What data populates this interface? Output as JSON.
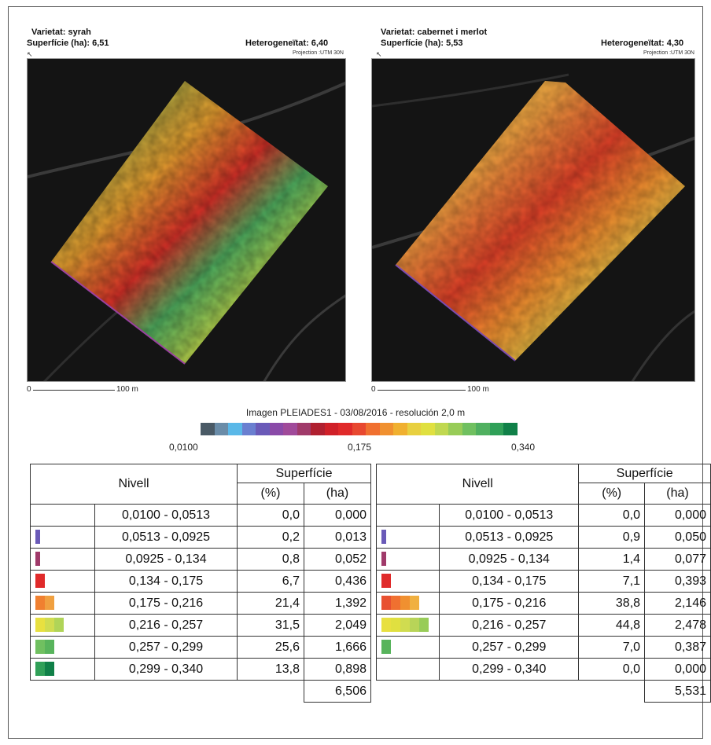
{
  "left_panel": {
    "variety": "Varietat: syrah",
    "area": "Superfície (ha): 6,51",
    "heterogeneity": "Heterogeneïtat: 6,40",
    "projection": "Projection :UTM 30N",
    "scale_zero": "0",
    "scale_length": "100 m"
  },
  "right_panel": {
    "variety": "Varietat: cabernet i merlot",
    "area": "Superfície (ha): 5,53",
    "heterogeneity": "Heterogeneïtat: 4,30",
    "projection": "Projection :UTM 30N",
    "scale_zero": "0",
    "scale_length": "100 m"
  },
  "caption": "Imagen PLEIADES1 - 03/08/2016 - resolución 2,0 m",
  "colorbar": {
    "min_label": "0,0100",
    "mid_label": "0,175",
    "max_label": "0,340",
    "colors": [
      "#4a5a66",
      "#6a8ca8",
      "#5ab8e8",
      "#6a7fd0",
      "#6a5ab8",
      "#8a4aa8",
      "#a04a9a",
      "#a03a6a",
      "#b02030",
      "#d02028",
      "#e02a2a",
      "#e84830",
      "#f07030",
      "#f09030",
      "#f0b030",
      "#e8d040",
      "#e0e040",
      "#c0d850",
      "#98cc58",
      "#70c060",
      "#50b060",
      "#30a058",
      "#108048"
    ]
  },
  "tables": [
    {
      "header_level": "Nivell",
      "header_surface": "Superfície",
      "header_pct": "(%)",
      "header_ha": "(ha)",
      "rows": [
        {
          "range": "0,0100 - 0,0513",
          "pct": "0,0",
          "ha": "0,000",
          "swatch": []
        },
        {
          "range": "0,0513 - 0,0925",
          "pct": "0,2",
          "ha": "0,013",
          "swatch": [
            "#6a5ab8"
          ]
        },
        {
          "range": "0,0925 - 0,134",
          "pct": "0,8",
          "ha": "0,052",
          "swatch": [
            "#a03a6a"
          ]
        },
        {
          "range": "0,134 - 0,175",
          "pct": "6,7",
          "ha": "0,436",
          "swatch": [
            "#e02a2a"
          ]
        },
        {
          "range": "0,175 - 0,216",
          "pct": "21,4",
          "ha": "1,392",
          "swatch": [
            "#f08030",
            "#f0a040"
          ]
        },
        {
          "range": "0,216 - 0,257",
          "pct": "31,5",
          "ha": "2,049",
          "swatch": [
            "#e8e040",
            "#d0dc50",
            "#b0d458"
          ]
        },
        {
          "range": "0,257 - 0,299",
          "pct": "25,6",
          "ha": "1,666",
          "swatch": [
            "#70c060",
            "#58b45c"
          ]
        },
        {
          "range": "0,299 - 0,340",
          "pct": "13,8",
          "ha": "0,898",
          "swatch": [
            "#30a058",
            "#108048"
          ]
        }
      ],
      "total": "6,506"
    },
    {
      "header_level": "Nivell",
      "header_surface": "Superfície",
      "header_pct": "(%)",
      "header_ha": "(ha)",
      "rows": [
        {
          "range": "0,0100 - 0,0513",
          "pct": "0,0",
          "ha": "0,000",
          "swatch": []
        },
        {
          "range": "0,0513 - 0,0925",
          "pct": "0,9",
          "ha": "0,050",
          "swatch": [
            "#6a5ab8"
          ]
        },
        {
          "range": "0,0925 - 0,134",
          "pct": "1,4",
          "ha": "0,077",
          "swatch": [
            "#a03a6a"
          ]
        },
        {
          "range": "0,134 - 0,175",
          "pct": "7,1",
          "ha": "0,393",
          "swatch": [
            "#e02a2a"
          ]
        },
        {
          "range": "0,175 - 0,216",
          "pct": "38,8",
          "ha": "2,146",
          "swatch": [
            "#e85030",
            "#f07030",
            "#f09030",
            "#f0b040"
          ]
        },
        {
          "range": "0,216 - 0,257",
          "pct": "44,8",
          "ha": "2,478",
          "swatch": [
            "#e8e040",
            "#e0e040",
            "#d0dc50",
            "#b8d458",
            "#98cc58"
          ]
        },
        {
          "range": "0,257 - 0,299",
          "pct": "7,0",
          "ha": "0,387",
          "swatch": [
            "#58b45c"
          ]
        },
        {
          "range": "0,299 - 0,340",
          "pct": "0,0",
          "ha": "0,000",
          "swatch": []
        }
      ],
      "total": "5,531"
    }
  ]
}
